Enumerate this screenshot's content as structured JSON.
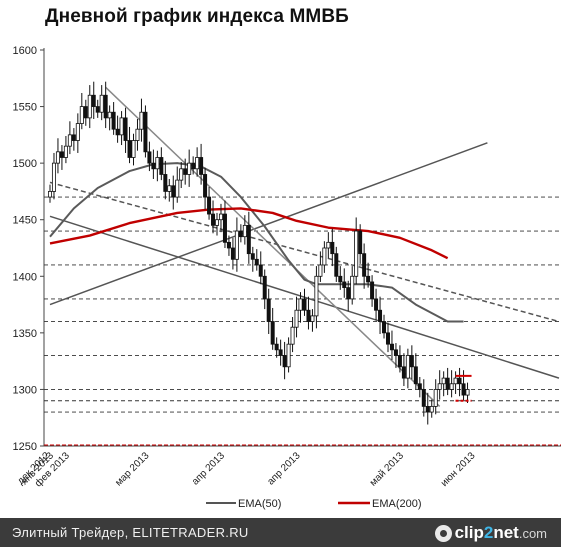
{
  "chart_data": {
    "type": "candlestick",
    "title": "Дневной график индекса ММВБ",
    "ylim": [
      1250,
      1600
    ],
    "y_ticks": [
      1250,
      1300,
      1350,
      1400,
      1450,
      1500,
      1550,
      1600
    ],
    "x_labels": [
      "дек 2012",
      "янв 2013",
      "фев 2013",
      "мар 2013",
      "апр 2013",
      "апр 2013",
      "май 2013",
      "июн 2013"
    ],
    "x_label_positions": [
      0,
      1,
      5,
      25,
      44,
      63,
      89,
      107
    ],
    "n_bars": 128,
    "legend": [
      {
        "name": "EMA(50)",
        "color": "#555555"
      },
      {
        "name": "EMA(200)",
        "color": "#c00000"
      }
    ],
    "dashed_levels": [
      1280,
      1290,
      1300,
      1330,
      1360,
      1380,
      1410,
      1440,
      1470
    ],
    "red_level": 1250,
    "closes": [
      1475,
      1500,
      1510,
      1505,
      1515,
      1525,
      1520,
      1535,
      1550,
      1540,
      1560,
      1550,
      1545,
      1560,
      1540,
      1545,
      1530,
      1525,
      1540,
      1520,
      1505,
      1520,
      1530,
      1545,
      1510,
      1500,
      1495,
      1505,
      1490,
      1475,
      1480,
      1470,
      1485,
      1495,
      1490,
      1500,
      1495,
      1505,
      1490,
      1470,
      1455,
      1445,
      1450,
      1455,
      1430,
      1425,
      1415,
      1440,
      1435,
      1445,
      1420,
      1415,
      1410,
      1400,
      1380,
      1360,
      1340,
      1335,
      1330,
      1320,
      1340,
      1355,
      1370,
      1380,
      1370,
      1360,
      1365,
      1400,
      1410,
      1425,
      1430,
      1420,
      1400,
      1395,
      1390,
      1380,
      1400,
      1440,
      1420,
      1400,
      1395,
      1380,
      1370,
      1360,
      1350,
      1340,
      1335,
      1330,
      1320,
      1310,
      1330,
      1320,
      1305,
      1300,
      1285,
      1280,
      1285,
      1300,
      1305,
      1310,
      1300,
      1305,
      1310,
      1305,
      1295,
      1300,
      1310,
      1305,
      1300,
      1320,
      1320,
      1320,
      1320,
      1320,
      1320,
      1320,
      1320,
      1320,
      1320,
      1320,
      1320,
      1320,
      1320,
      1320,
      1320,
      1320,
      1320,
      1320
    ],
    "ema50": [
      [
        0,
        1435
      ],
      [
        6,
        1460
      ],
      [
        12,
        1478
      ],
      [
        20,
        1493
      ],
      [
        26,
        1499
      ],
      [
        32,
        1500
      ],
      [
        38,
        1497
      ],
      [
        43,
        1488
      ],
      [
        48,
        1470
      ],
      [
        54,
        1444
      ],
      [
        60,
        1414
      ],
      [
        64,
        1397
      ],
      [
        67,
        1393
      ],
      [
        72,
        1393
      ],
      [
        80,
        1393
      ],
      [
        86,
        1390
      ],
      [
        92,
        1375
      ],
      [
        100,
        1360
      ],
      [
        104,
        1360
      ]
    ],
    "ema200": [
      [
        0,
        1429
      ],
      [
        10,
        1436
      ],
      [
        20,
        1447
      ],
      [
        32,
        1456
      ],
      [
        40,
        1459
      ],
      [
        48,
        1460
      ],
      [
        56,
        1456
      ],
      [
        62,
        1449
      ],
      [
        70,
        1443
      ],
      [
        80,
        1440
      ],
      [
        88,
        1434
      ],
      [
        96,
        1423
      ],
      [
        100,
        1416
      ]
    ],
    "trendlines": [
      {
        "style": "solid",
        "color": "#555555",
        "points": [
          [
            0,
            1375
          ],
          [
            110,
            1518
          ]
        ]
      },
      {
        "style": "solid",
        "color": "#555555",
        "points": [
          [
            0,
            1453
          ],
          [
            128,
            1310
          ]
        ]
      },
      {
        "style": "solid",
        "color": "#888888",
        "points": [
          [
            14,
            1567
          ],
          [
            98,
            1285
          ]
        ]
      },
      {
        "style": "dashed",
        "color": "#555555",
        "points": [
          [
            0,
            1483
          ],
          [
            128,
            1360
          ]
        ]
      }
    ],
    "red_marks": [
      {
        "x": 104,
        "y": 1312
      },
      {
        "x": 104,
        "y": 1290
      }
    ]
  },
  "footer": {
    "text": "Элитный Трейдер, ELITETRADER.RU",
    "logo_a": "clip",
    "logo_b": "2",
    "logo_c": "net",
    "logo_d": ".com"
  }
}
